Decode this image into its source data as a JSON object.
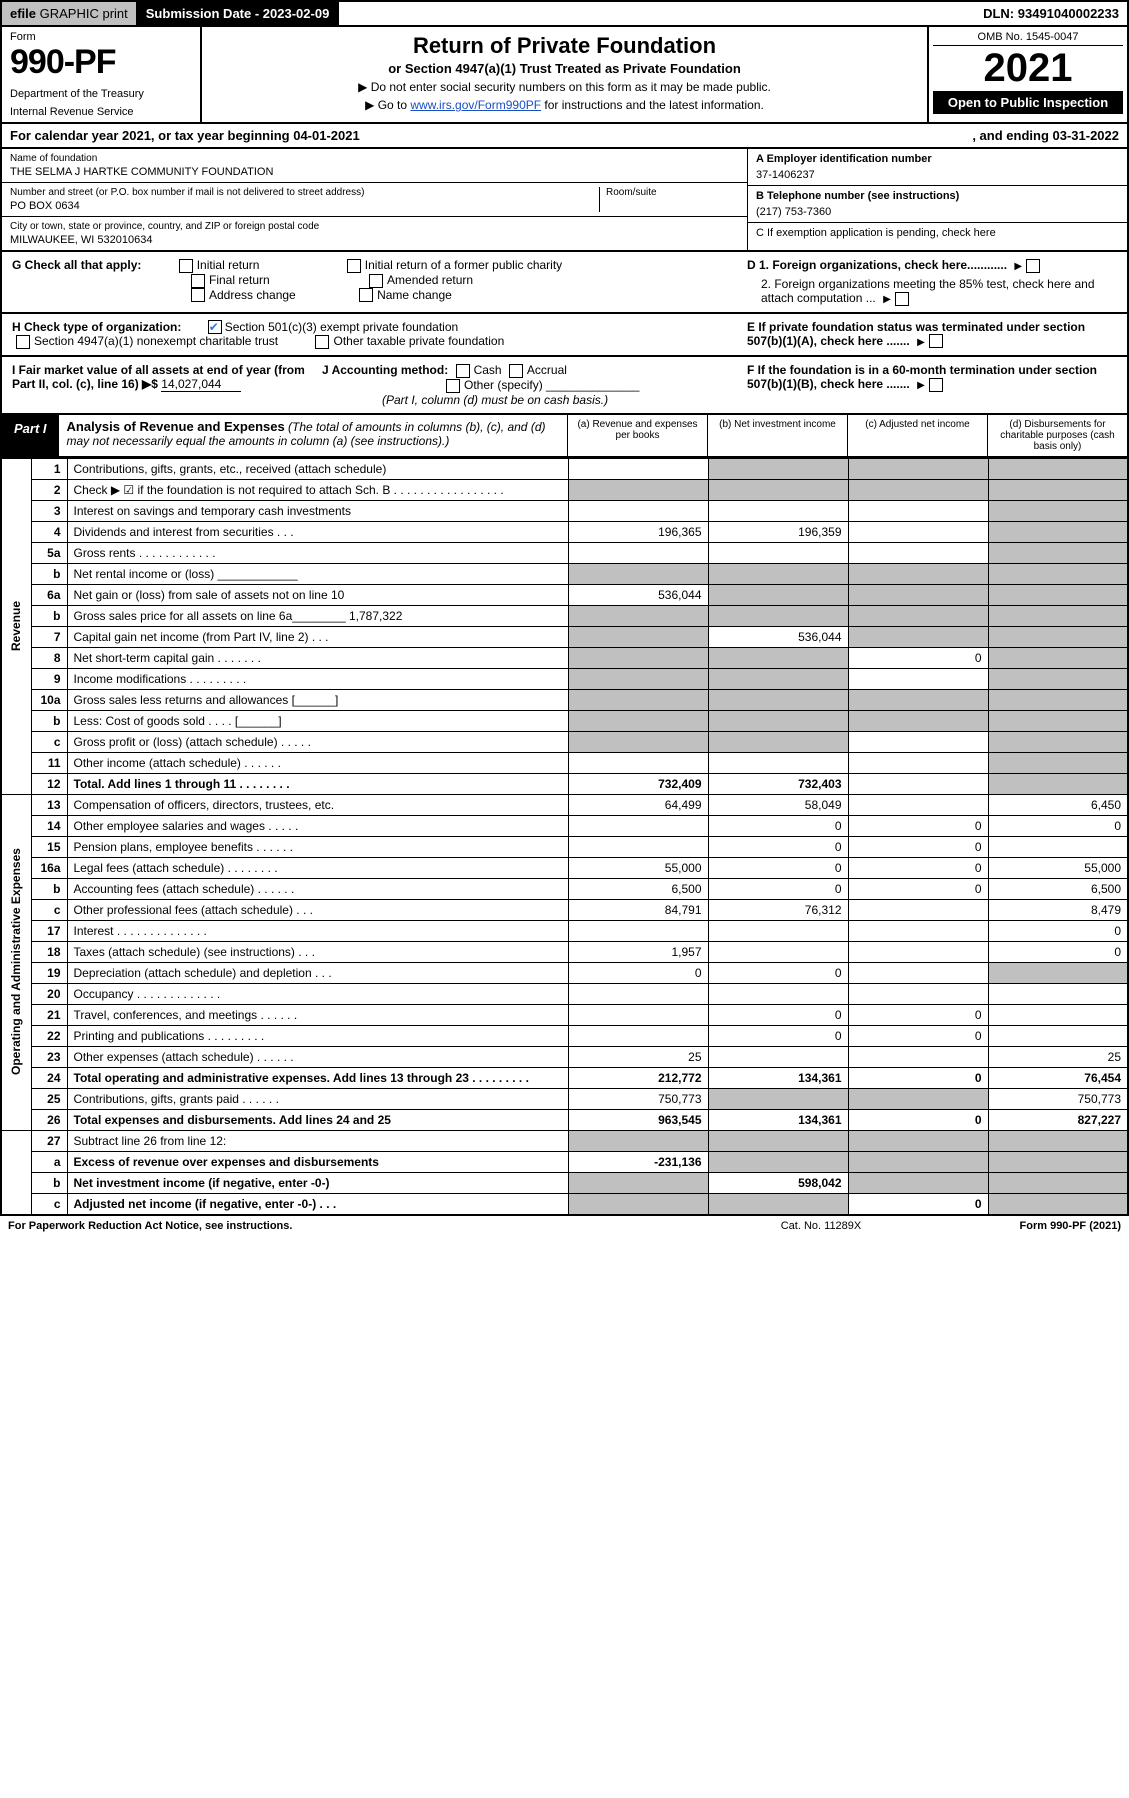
{
  "topbar": {
    "efile_prefix": "efile",
    "efile_rest": " GRAPHIC print",
    "submission_label": "Submission Date - ",
    "submission_date": "2023-02-09",
    "dln_label": "DLN: ",
    "dln": "93491040002233"
  },
  "header": {
    "form_label": "Form",
    "form_number": "990-PF",
    "dept1": "Department of the Treasury",
    "dept2": "Internal Revenue Service",
    "title": "Return of Private Foundation",
    "subtitle": "or Section 4947(a)(1) Trust Treated as Private Foundation",
    "instr1": "▶ Do not enter social security numbers on this form as it may be made public.",
    "instr2_pre": "▶ Go to ",
    "instr2_link": "www.irs.gov/Form990PF",
    "instr2_post": " for instructions and the latest information.",
    "omb": "OMB No. 1545-0047",
    "year": "2021",
    "open": "Open to Public Inspection"
  },
  "calyear": {
    "left": "For calendar year 2021, or tax year beginning 04-01-2021",
    "right": ", and ending 03-31-2022"
  },
  "id": {
    "name_lbl": "Name of foundation",
    "name": "THE SELMA J HARTKE COMMUNITY FOUNDATION",
    "addr_lbl": "Number and street (or P.O. box number if mail is not delivered to street address)",
    "addr": "PO BOX 0634",
    "room_lbl": "Room/suite",
    "city_lbl": "City or town, state or province, country, and ZIP or foreign postal code",
    "city": "MILWAUKEE, WI  532010634",
    "a_lbl": "A Employer identification number",
    "a_val": "37-1406237",
    "b_lbl": "B Telephone number (see instructions)",
    "b_val": "(217) 753-7360",
    "c_lbl": "C If exemption application is pending, check here"
  },
  "g": {
    "label": "G Check all that apply:",
    "opts": [
      "Initial return",
      "Final return",
      "Address change",
      "Initial return of a former public charity",
      "Amended return",
      "Name change"
    ]
  },
  "h": {
    "label": "H Check type of organization:",
    "opt1": "Section 501(c)(3) exempt private foundation",
    "opt2": "Section 4947(a)(1) nonexempt charitable trust",
    "opt3": "Other taxable private foundation"
  },
  "d": {
    "d1": "D 1. Foreign organizations, check here............",
    "d2": "2. Foreign organizations meeting the 85% test, check here and attach computation ..."
  },
  "e": "E  If private foundation status was terminated under section 507(b)(1)(A), check here .......",
  "i": {
    "label": "I Fair market value of all assets at end of year (from Part II, col. (c), line 16) ▶$ ",
    "value": "14,027,044"
  },
  "j": {
    "label": "J Accounting method:",
    "cash": "Cash",
    "accrual": "Accrual",
    "other": "Other (specify)",
    "note": "(Part I, column (d) must be on cash basis.)"
  },
  "f": "F  If the foundation is in a 60-month termination under section 507(b)(1)(B), check here .......",
  "part1": {
    "badge": "Part I",
    "title_b": "Analysis of Revenue and Expenses",
    "title_rest": " (The total of amounts in columns (b), (c), and (d) may not necessarily equal the amounts in column (a) (see instructions).)",
    "col_a": "(a)  Revenue and expenses per books",
    "col_b": "(b)  Net investment income",
    "col_c": "(c)  Adjusted net income",
    "col_d": "(d)  Disbursements for charitable purposes (cash basis only)"
  },
  "sidelabels": {
    "revenue": "Revenue",
    "opex": "Operating and Administrative Expenses"
  },
  "rows": [
    {
      "n": "1",
      "d": "Contributions, gifts, grants, etc., received (attach schedule)",
      "a": "",
      "b": "g",
      "c": "g",
      "dd": "g"
    },
    {
      "n": "2",
      "d": "Check ▶ ☑ if the foundation is not required to attach Sch. B   .  .  .  .  .  .  .  .  .  .  .  .  .  .  .  .  .",
      "a": "g",
      "b": "g",
      "c": "g",
      "dd": "g"
    },
    {
      "n": "3",
      "d": "Interest on savings and temporary cash investments",
      "a": "",
      "b": "",
      "c": "",
      "dd": "g"
    },
    {
      "n": "4",
      "d": "Dividends and interest from securities   .   .   .",
      "a": "196,365",
      "b": "196,359",
      "c": "",
      "dd": "g"
    },
    {
      "n": "5a",
      "d": "Gross rents   .   .   .   .   .   .   .   .   .   .   .   .",
      "a": "",
      "b": "",
      "c": "",
      "dd": "g"
    },
    {
      "n": "b",
      "d": "Net rental income or (loss)  ____________",
      "a": "g",
      "b": "g",
      "c": "g",
      "dd": "g"
    },
    {
      "n": "6a",
      "d": "Net gain or (loss) from sale of assets not on line 10",
      "a": "536,044",
      "b": "g",
      "c": "g",
      "dd": "g"
    },
    {
      "n": "b",
      "d": "Gross sales price for all assets on line 6a________ 1,787,322",
      "a": "g",
      "b": "g",
      "c": "g",
      "dd": "g"
    },
    {
      "n": "7",
      "d": "Capital gain net income (from Part IV, line 2)   .   .   .",
      "a": "g",
      "b": "536,044",
      "c": "g",
      "dd": "g"
    },
    {
      "n": "8",
      "d": "Net short-term capital gain   .   .   .   .   .   .   .",
      "a": "g",
      "b": "g",
      "c": "0",
      "dd": "g"
    },
    {
      "n": "9",
      "d": "Income modifications   .   .   .   .   .   .   .   .   .",
      "a": "g",
      "b": "g",
      "c": "",
      "dd": "g"
    },
    {
      "n": "10a",
      "d": "Gross sales less returns and allowances  [______]",
      "a": "g",
      "b": "g",
      "c": "g",
      "dd": "g"
    },
    {
      "n": "b",
      "d": "Less: Cost of goods sold     .   .   .   .  [______]",
      "a": "g",
      "b": "g",
      "c": "g",
      "dd": "g"
    },
    {
      "n": "c",
      "d": "Gross profit or (loss) (attach schedule)     .   .   .   .   .",
      "a": "g",
      "b": "g",
      "c": "",
      "dd": "g"
    },
    {
      "n": "11",
      "d": "Other income (attach schedule)    .   .   .   .   .   .",
      "a": "",
      "b": "",
      "c": "",
      "dd": "g"
    },
    {
      "n": "12",
      "d": "Total. Add lines 1 through 11   .   .   .   .   .   .   .   .",
      "a": "732,409",
      "b": "732,403",
      "c": "",
      "dd": "g",
      "bold": true
    }
  ],
  "rows2": [
    {
      "n": "13",
      "d": "Compensation of officers, directors, trustees, etc.",
      "a": "64,499",
      "b": "58,049",
      "c": "",
      "dd": "6,450"
    },
    {
      "n": "14",
      "d": "Other employee salaries and wages    .   .   .   .   .",
      "a": "",
      "b": "0",
      "c": "0",
      "dd": "0"
    },
    {
      "n": "15",
      "d": "Pension plans, employee benefits   .   .   .   .   .   .",
      "a": "",
      "b": "0",
      "c": "0",
      "dd": ""
    },
    {
      "n": "16a",
      "d": "Legal fees (attach schedule)   .   .   .   .   .   .   .   .",
      "a": "55,000",
      "b": "0",
      "c": "0",
      "dd": "55,000"
    },
    {
      "n": "b",
      "d": "Accounting fees (attach schedule)   .   .   .   .   .   .",
      "a": "6,500",
      "b": "0",
      "c": "0",
      "dd": "6,500"
    },
    {
      "n": "c",
      "d": "Other professional fees (attach schedule)    .   .   .",
      "a": "84,791",
      "b": "76,312",
      "c": "",
      "dd": "8,479"
    },
    {
      "n": "17",
      "d": "Interest   .   .   .   .   .   .   .   .   .   .   .   .   .   .",
      "a": "",
      "b": "",
      "c": "",
      "dd": "0"
    },
    {
      "n": "18",
      "d": "Taxes (attach schedule) (see instructions)    .   .   .",
      "a": "1,957",
      "b": "",
      "c": "",
      "dd": "0"
    },
    {
      "n": "19",
      "d": "Depreciation (attach schedule) and depletion    .   .   .",
      "a": "0",
      "b": "0",
      "c": "",
      "dd": "g"
    },
    {
      "n": "20",
      "d": "Occupancy   .   .   .   .   .   .   .   .   .   .   .   .   .",
      "a": "",
      "b": "",
      "c": "",
      "dd": ""
    },
    {
      "n": "21",
      "d": "Travel, conferences, and meetings   .   .   .   .   .   .",
      "a": "",
      "b": "0",
      "c": "0",
      "dd": ""
    },
    {
      "n": "22",
      "d": "Printing and publications   .   .   .   .   .   .   .   .   .",
      "a": "",
      "b": "0",
      "c": "0",
      "dd": ""
    },
    {
      "n": "23",
      "d": "Other expenses (attach schedule)   .   .   .   .   .   .",
      "a": "25",
      "b": "",
      "c": "",
      "dd": "25"
    },
    {
      "n": "24",
      "d": "Total operating and administrative expenses. Add lines 13 through 23   .   .   .   .   .   .   .   .   .",
      "a": "212,772",
      "b": "134,361",
      "c": "0",
      "dd": "76,454",
      "bold": true
    },
    {
      "n": "25",
      "d": "Contributions, gifts, grants paid    .   .   .   .   .   .",
      "a": "750,773",
      "b": "g",
      "c": "g",
      "dd": "750,773"
    },
    {
      "n": "26",
      "d": "Total expenses and disbursements. Add lines 24 and 25",
      "a": "963,545",
      "b": "134,361",
      "c": "0",
      "dd": "827,227",
      "bold": true
    }
  ],
  "rows3": [
    {
      "n": "27",
      "d": "Subtract line 26 from line 12:",
      "a": "g",
      "b": "g",
      "c": "g",
      "dd": "g"
    },
    {
      "n": "a",
      "d": "Excess of revenue over expenses and disbursements",
      "a": "-231,136",
      "b": "g",
      "c": "g",
      "dd": "g",
      "bold": true
    },
    {
      "n": "b",
      "d": "Net investment income (if negative, enter -0-)",
      "a": "g",
      "b": "598,042",
      "c": "g",
      "dd": "g",
      "bold": true
    },
    {
      "n": "c",
      "d": "Adjusted net income (if negative, enter -0-)   .   .   .",
      "a": "g",
      "b": "g",
      "c": "0",
      "dd": "g",
      "bold": true
    }
  ],
  "footer": {
    "l": "For Paperwork Reduction Act Notice, see instructions.",
    "c": "Cat. No. 11289X",
    "r": "Form 990-PF (2021)"
  },
  "colors": {
    "grey": "#c0c0c0",
    "link": "#1a4ec2",
    "check": "#2a7de1"
  }
}
